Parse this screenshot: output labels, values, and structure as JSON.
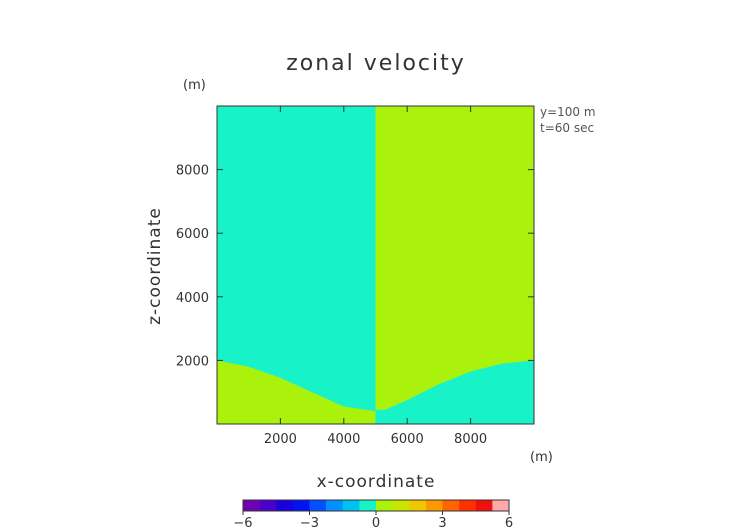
{
  "chart_data": {
    "type": "heatmap",
    "title": "zonal velocity",
    "xlabel": "x-coordinate",
    "ylabel": "z-coordinate",
    "x_unit": "(m)",
    "y_unit": "(m)",
    "xlim": [
      0,
      10000
    ],
    "ylim": [
      0,
      10000
    ],
    "x_ticks": [
      2000,
      4000,
      6000,
      8000
    ],
    "y_ticks": [
      2000,
      4000,
      6000,
      8000
    ],
    "annotations": [
      "y=100 m",
      "t=60 sec"
    ],
    "regions": [
      {
        "name": "negative",
        "color": "#17f2c9"
      },
      {
        "name": "positive",
        "color": "#aaf20c"
      }
    ],
    "boundary_left": [
      [
        0,
        2000
      ],
      [
        1000,
        1800
      ],
      [
        2000,
        1450
      ],
      [
        3000,
        1000
      ],
      [
        4000,
        550
      ],
      [
        4700,
        450
      ],
      [
        5000,
        400
      ]
    ],
    "boundary_right": [
      [
        5000,
        450
      ],
      [
        5300,
        450
      ],
      [
        6000,
        750
      ],
      [
        7000,
        1250
      ],
      [
        8000,
        1650
      ],
      [
        9000,
        1900
      ],
      [
        10000,
        2000
      ]
    ],
    "colorbar": {
      "ticks": [
        -6,
        -3,
        0,
        3,
        6
      ],
      "tick_labels": [
        "−6",
        "−3",
        "0",
        "3",
        "6"
      ],
      "colors": [
        "#7000b3",
        "#4a00cc",
        "#1a00dd",
        "#0014f2",
        "#0050ff",
        "#0090ff",
        "#00c2f0",
        "#17f2c9",
        "#aaf20c",
        "#c8e600",
        "#f0c800",
        "#ff9900",
        "#ff6400",
        "#ff3000",
        "#f01010",
        "#ffaaaa"
      ]
    }
  }
}
